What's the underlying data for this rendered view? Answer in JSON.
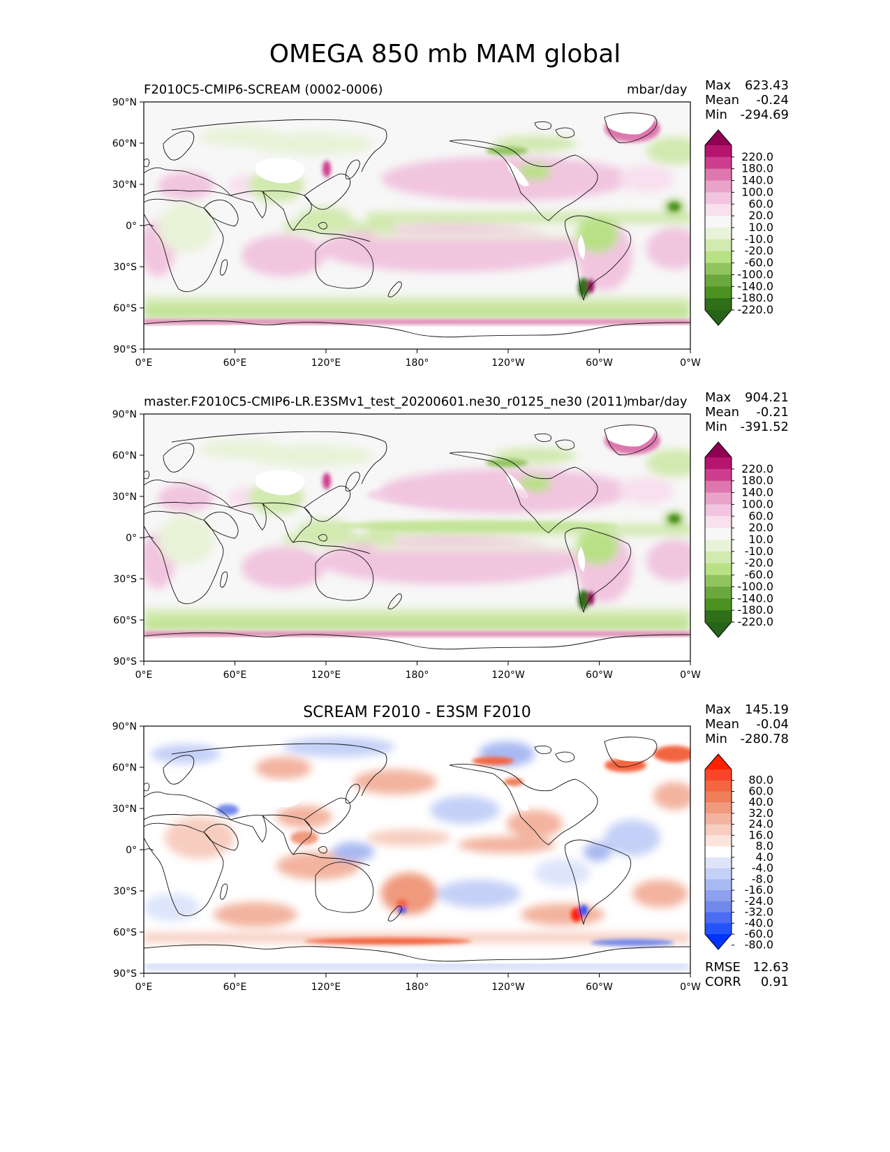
{
  "page": {
    "title": "OMEGA 850 mb MAM global"
  },
  "axes": {
    "lat_ticks": [
      "90°N",
      "60°N",
      "30°N",
      "0°",
      "30°S",
      "60°S",
      "90°S"
    ],
    "lon_ticks": [
      "0°E",
      "60°E",
      "120°E",
      "180°",
      "120°W",
      "60°W",
      "0°W"
    ]
  },
  "panels": [
    {
      "title": "F2010C5-CMIP6-SCREAM (0002-0006)",
      "units": "mbar/day",
      "stats": [
        {
          "label": "Max",
          "value": "623.43"
        },
        {
          "label": "Mean",
          "value": "-0.24"
        },
        {
          "label": "Min",
          "value": "-294.69"
        }
      ]
    },
    {
      "title": "master.F2010C5-CMIP6-LR.E3SMv1_test_20200601.ne30_r0125_ne30 (2011)",
      "units": "mbar/day",
      "stats": [
        {
          "label": "Max",
          "value": "904.21"
        },
        {
          "label": "Mean",
          "value": "-0.21"
        },
        {
          "label": "Min",
          "value": "-391.52"
        }
      ]
    },
    {
      "title": "SCREAM F2010 - E3SM F2010",
      "units": "",
      "stats": [
        {
          "label": "Max",
          "value": "145.19"
        },
        {
          "label": "Mean",
          "value": "-0.04"
        },
        {
          "label": "Min",
          "value": "-280.78"
        }
      ],
      "metrics": [
        {
          "label": "RMSE",
          "value": "12.63"
        },
        {
          "label": "CORR",
          "value": "0.91"
        }
      ]
    }
  ],
  "colorbars": {
    "field": {
      "labels": [
        "220.0",
        "180.0",
        "140.0",
        "100.0",
        "60.0",
        "20.0",
        "10.0",
        "-10.0",
        "-20.0",
        "-60.0",
        "-100.0",
        "-140.0",
        "-180.0",
        "-220.0"
      ],
      "colors": [
        "#8e0152",
        "#b5146f",
        "#cd3e8e",
        "#de77ae",
        "#e9a3c9",
        "#f1c5df",
        "#f8e0ee",
        "#f7f7f7",
        "#e8f3d8",
        "#d2e9b0",
        "#b8e186",
        "#91c45f",
        "#6aa83d",
        "#4d9221",
        "#2f6f17",
        "#276419"
      ]
    },
    "diff": {
      "labels": [
        "80.0",
        "60.0",
        "40.0",
        "32.0",
        "24.0",
        "16.0",
        "8.0",
        "4.0",
        "-4.0",
        "-8.0",
        "-16.0",
        "-24.0",
        "-32.0",
        "-40.0",
        "-60.0",
        "-80.0"
      ],
      "colors": [
        "#ff2200",
        "#f9452a",
        "#f3653f",
        "#ee7f5a",
        "#f09a7e",
        "#f3b39f",
        "#f7cdbf",
        "#fbe4dc",
        "#ffffff",
        "#dee5fb",
        "#c4d0f7",
        "#a9b9f2",
        "#8ea1ee",
        "#7388eb",
        "#4b6cf3",
        "#2354fb",
        "#0033ff"
      ]
    }
  }
}
